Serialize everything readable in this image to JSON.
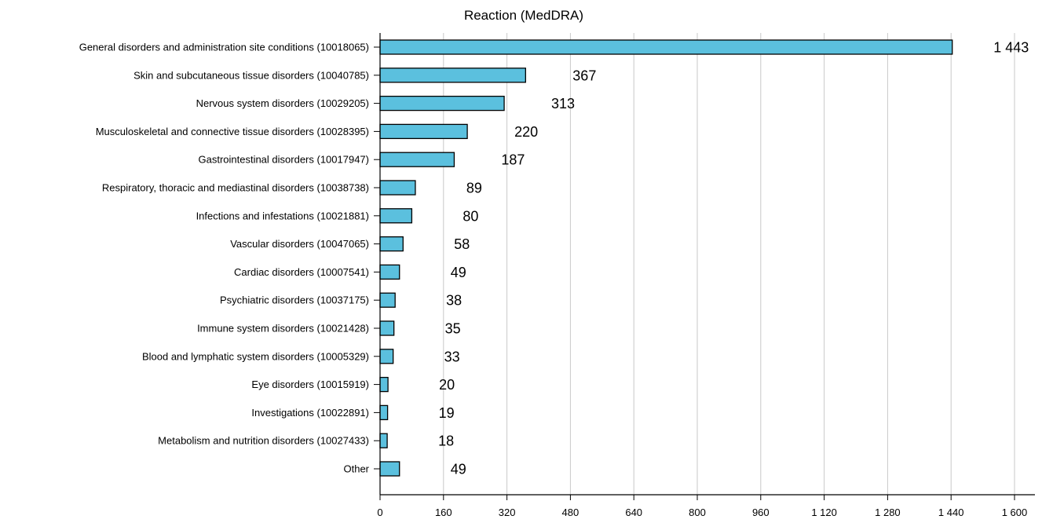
{
  "chart_data": {
    "type": "bar",
    "orientation": "horizontal",
    "title": "Reaction (MedDRA)",
    "xlabel": "",
    "ylabel": "",
    "xlim": [
      0,
      1600
    ],
    "x_ticks": [
      0,
      160,
      320,
      480,
      640,
      800,
      960,
      1120,
      1280,
      1440,
      1600
    ],
    "x_tick_labels": [
      "0",
      "160",
      "320",
      "480",
      "640",
      "800",
      "960",
      "1 120",
      "1 280",
      "1 440",
      "1 600"
    ],
    "grid": "vertical",
    "bar_color": "#5bc0de",
    "categories": [
      "General disorders and administration site conditions (10018065)",
      "Skin and subcutaneous tissue disorders (10040785)",
      "Nervous system disorders (10029205)",
      "Musculoskeletal and connective tissue disorders (10028395)",
      "Gastrointestinal disorders (10017947)",
      "Respiratory, thoracic and mediastinal disorders (10038738)",
      "Infections and infestations (10021881)",
      "Vascular disorders (10047065)",
      "Cardiac disorders (10007541)",
      "Psychiatric disorders (10037175)",
      "Immune system disorders (10021428)",
      "Blood and lymphatic system disorders (10005329)",
      "Eye disorders (10015919)",
      "Investigations (10022891)",
      "Metabolism and nutrition disorders (10027433)",
      "Other"
    ],
    "values": [
      1443,
      367,
      313,
      220,
      187,
      89,
      80,
      58,
      49,
      38,
      35,
      33,
      20,
      19,
      18,
      49
    ],
    "value_labels": [
      "1 443",
      "367",
      "313",
      "220",
      "187",
      "89",
      "80",
      "58",
      "49",
      "38",
      "35",
      "33",
      "20",
      "19",
      "18",
      "49"
    ]
  }
}
